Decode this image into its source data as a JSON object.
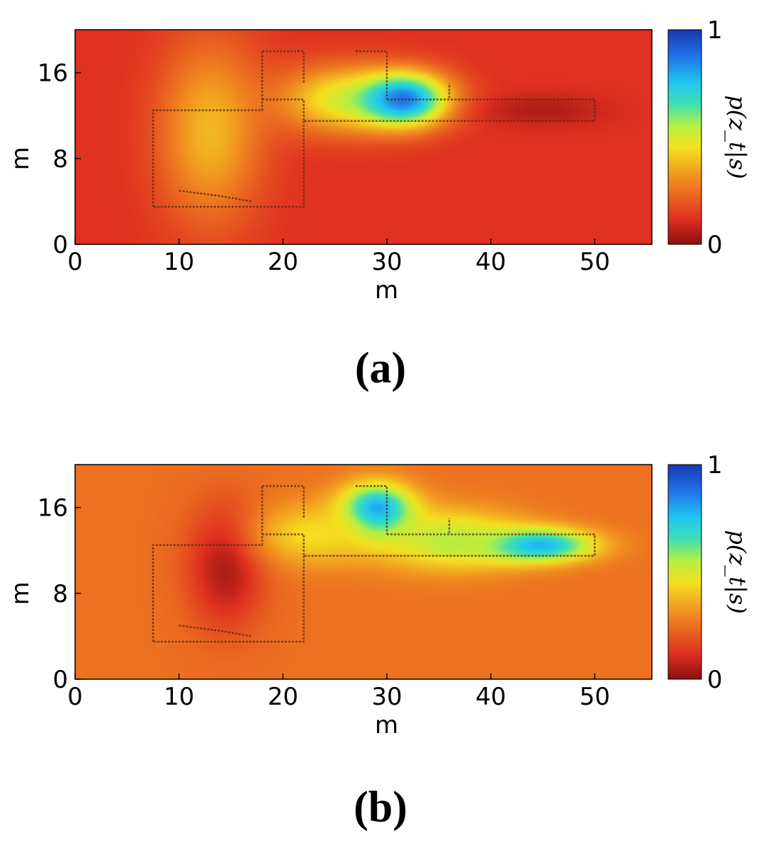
{
  "chart_data": [
    {
      "type": "heatmap",
      "panel_label": "(a)",
      "xlabel": "m",
      "ylabel": "m",
      "xlim": [
        0,
        55.5
      ],
      "ylim": [
        0,
        20
      ],
      "xticks": [
        0,
        10,
        20,
        30,
        40,
        50
      ],
      "yticks": [
        0,
        8,
        16
      ],
      "colorbar": {
        "label": "p(z_t|s)",
        "min": 0,
        "max": 1,
        "ticks": [
          0,
          1
        ],
        "colormap": "jet"
      },
      "background_value": 0.12,
      "hotspots": [
        {
          "x": 13,
          "y": 10.5,
          "sx": 3.5,
          "sy": 6,
          "value": 0.38
        },
        {
          "x": 25,
          "y": 13.5,
          "sx": 4,
          "sy": 2.2,
          "value": 0.45
        },
        {
          "x": 31.5,
          "y": 13.5,
          "sx": 3.2,
          "sy": 1.8,
          "value": 0.88
        },
        {
          "x": 45,
          "y": 12.5,
          "sx": 4,
          "sy": 1,
          "value": 0.05
        }
      ]
    },
    {
      "type": "heatmap",
      "panel_label": "(b)",
      "xlabel": "m",
      "ylabel": "m",
      "xlim": [
        0,
        55.5
      ],
      "ylim": [
        0,
        20
      ],
      "xticks": [
        0,
        10,
        20,
        30,
        40,
        50
      ],
      "yticks": [
        0,
        8,
        16
      ],
      "colorbar": {
        "label": "p(z_t|s)",
        "min": 0,
        "max": 1,
        "ticks": [
          0,
          1
        ],
        "colormap": "jet"
      },
      "background_value": 0.25,
      "hotspots": [
        {
          "x": 14.5,
          "y": 10.5,
          "sx": 2.6,
          "sy": 4,
          "value": 0.04
        },
        {
          "x": 29,
          "y": 15.5,
          "sx": 2.5,
          "sy": 1.8,
          "value": 0.92
        },
        {
          "x": 44,
          "y": 12.5,
          "sx": 4,
          "sy": 1.1,
          "value": 0.85
        },
        {
          "x": 36,
          "y": 13,
          "sx": 5,
          "sy": 2,
          "value": 0.55
        },
        {
          "x": 23,
          "y": 13.5,
          "sx": 4,
          "sy": 2,
          "value": 0.45
        }
      ]
    }
  ]
}
